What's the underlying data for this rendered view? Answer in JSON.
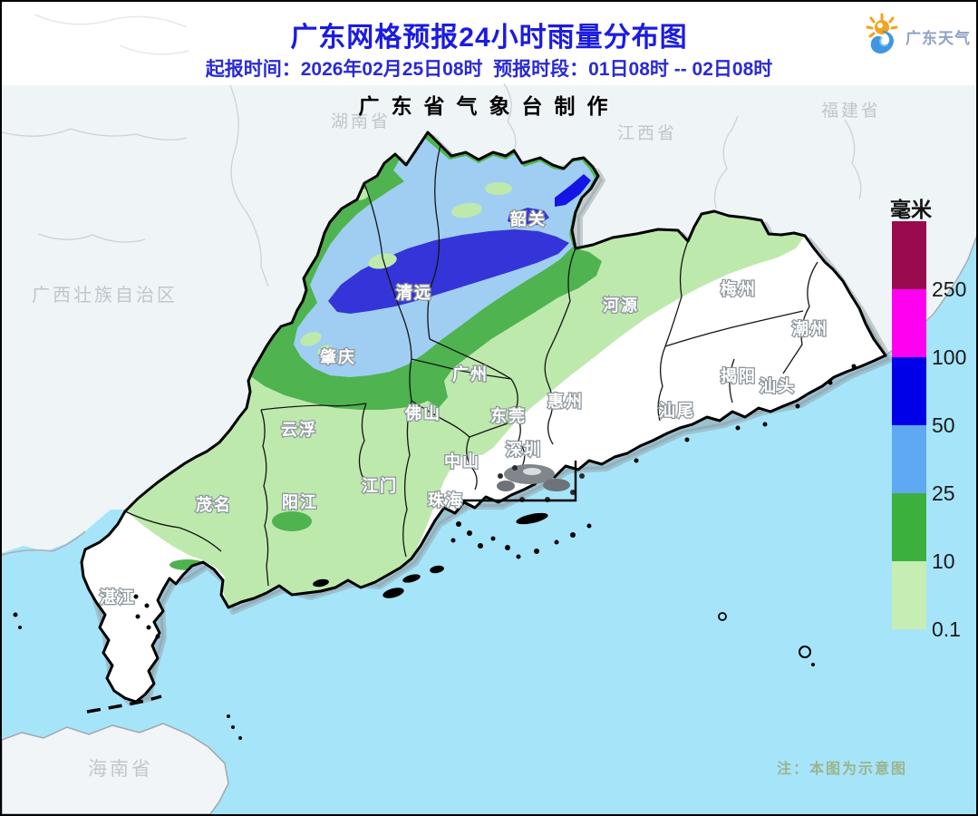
{
  "header": {
    "title": "广东网格预报24小时雨量分布图",
    "subtitle": "起报时间：2026年02月25日08时  预报时段：01日08时 -- 02日08时",
    "producer": "广东省气象台制作",
    "logo": {
      "text": "广东天气"
    }
  },
  "legend": {
    "unit": "毫米",
    "levels": [
      {
        "label": "250",
        "color": "#9a0a4e"
      },
      {
        "label": "100",
        "color": "#ff00f0"
      },
      {
        "label": "50",
        "color": "#0000e8"
      },
      {
        "label": "25",
        "color": "#5fa9f2"
      },
      {
        "label": "10",
        "color": "#3cb03c"
      },
      {
        "label": "0.1",
        "color": "#c6edb4"
      }
    ]
  },
  "map": {
    "cities": [
      {
        "id": "shaoguan",
        "name": "韶关"
      },
      {
        "id": "qingyuan",
        "name": "清远"
      },
      {
        "id": "heyuan",
        "name": "河源"
      },
      {
        "id": "meizhou",
        "name": "梅州"
      },
      {
        "id": "chaozhou",
        "name": "潮州"
      },
      {
        "id": "jieyang",
        "name": "揭阳"
      },
      {
        "id": "shantou",
        "name": "汕头"
      },
      {
        "id": "shanwei",
        "name": "汕尾"
      },
      {
        "id": "huizhou",
        "name": "惠州"
      },
      {
        "id": "dongguan",
        "name": "东莞"
      },
      {
        "id": "shenzhen",
        "name": "深圳"
      },
      {
        "id": "guangzhou",
        "name": "广州"
      },
      {
        "id": "foshan",
        "name": "佛山"
      },
      {
        "id": "zhongshan",
        "name": "中山"
      },
      {
        "id": "zhuhai",
        "name": "珠海"
      },
      {
        "id": "jiangmen",
        "name": "江门"
      },
      {
        "id": "zhaoqing",
        "name": "肇庆"
      },
      {
        "id": "yunfu",
        "name": "云浮"
      },
      {
        "id": "yangjiang",
        "name": "阳江"
      },
      {
        "id": "maoming",
        "name": "茂名"
      },
      {
        "id": "zhanjiang",
        "name": "湛江"
      }
    ],
    "neighbors": [
      {
        "id": "guangxi",
        "name": "广西壮族自治区"
      },
      {
        "id": "hunan",
        "name": "湖南省"
      },
      {
        "id": "jiangxi",
        "name": "江西省"
      },
      {
        "id": "fujian",
        "name": "福建省"
      },
      {
        "id": "hainan",
        "name": "海南省"
      }
    ],
    "note": "注：本图为示意图",
    "palette": {
      "outside_land": "#eff4f6",
      "sea": "#a6e4f9",
      "no_rain": "#ffffff",
      "rain_0_1": "#bee9ad",
      "rain_10": "#4fb34f",
      "rain_25": "#9fcef2",
      "rain_50": "#3434d8",
      "rain_core": "#1414e4",
      "hk_urban": "#80868b"
    }
  }
}
